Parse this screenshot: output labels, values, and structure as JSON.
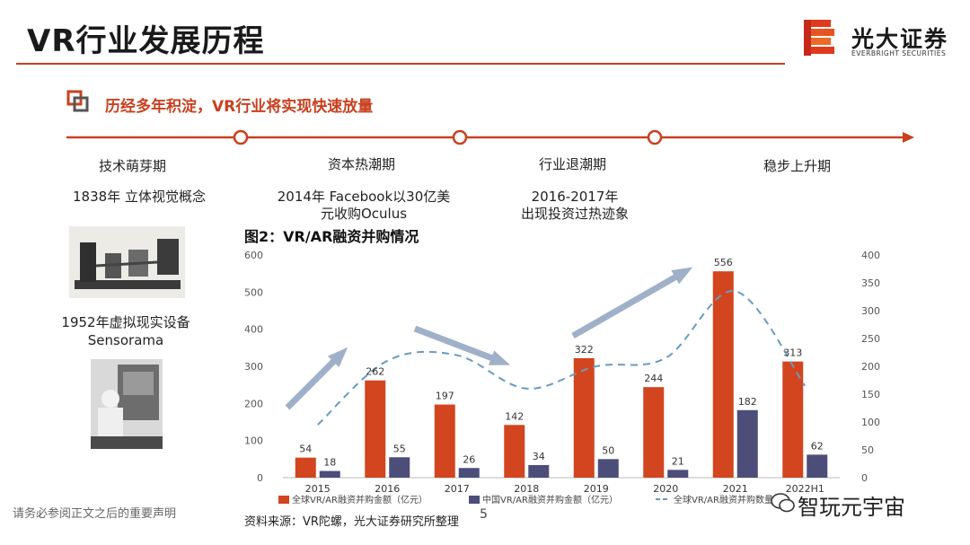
{
  "header": {
    "title": "VR行业发展历程",
    "logo_text": "光大证券",
    "logo_sub": "EVERBRIGHT SECURITIES"
  },
  "subtitle": "历经多年积淀，VR行业将实现快速放量",
  "timeline": {
    "stages": [
      {
        "label": "技术萌芽期",
        "desc": "1838年 立体视觉概念"
      },
      {
        "label": "资本热潮期",
        "desc": "2014年 Facebook以30亿美元收购Oculus"
      },
      {
        "label": "行业退潮期",
        "desc": "2016-2017年 出现投资过热迹象"
      },
      {
        "label": "稳步上升期",
        "desc": ""
      }
    ],
    "extra_desc_1952_line1": "1952年虚拟现实设备",
    "extra_desc_1952_line2": "Sensorama",
    "desc_2014_line1": "2014年 Facebook以30亿美",
    "desc_2014_line2": "元收购Oculus",
    "desc_2016_line1": "2016-2017年",
    "desc_2016_line2": "出现投资过热迹象"
  },
  "figure_title": "图2：VR/AR融资并购情况",
  "source": "资料来源：VR陀螺，光大证券研究所整理",
  "page_number": "5",
  "disclaimer": "请务必参阅正文之后的重要声明",
  "wechat_label": "智玩元宇宙",
  "colors": {
    "accent": "#c9401f",
    "navy": "#4d4d7a",
    "line": "#6a9bbf"
  },
  "chart_data": {
    "type": "bar",
    "title": "图2：VR/AR融资并购情况",
    "categories": [
      "2015",
      "2016",
      "2017",
      "2018",
      "2019",
      "2020",
      "2021",
      "2022H1"
    ],
    "series": [
      {
        "name": "全球VR/AR融资并购金额（亿元）",
        "type": "bar",
        "axis": "left",
        "color": "#d2451f",
        "values": [
          54,
          262,
          197,
          142,
          322,
          244,
          556,
          313
        ]
      },
      {
        "name": "中国VR/AR融资并购金额（亿元）",
        "type": "bar",
        "axis": "left",
        "color": "#4d4d7a",
        "values": [
          18,
          55,
          26,
          34,
          50,
          21,
          182,
          62
        ]
      },
      {
        "name": "全球VR/AR融资并购数量",
        "type": "line",
        "style": "dashed",
        "axis": "right",
        "color": "#6a9bbf",
        "values": [
          95,
          210,
          220,
          160,
          200,
          215,
          335,
          165
        ]
      }
    ],
    "y_left": {
      "min": 0,
      "max": 600,
      "ticks": [
        0,
        100,
        200,
        300,
        400,
        500,
        600
      ]
    },
    "y_right": {
      "min": 0,
      "max": 400,
      "ticks": [
        0,
        50,
        100,
        150,
        200,
        250,
        300,
        350,
        400
      ]
    },
    "legend": "bottom"
  }
}
